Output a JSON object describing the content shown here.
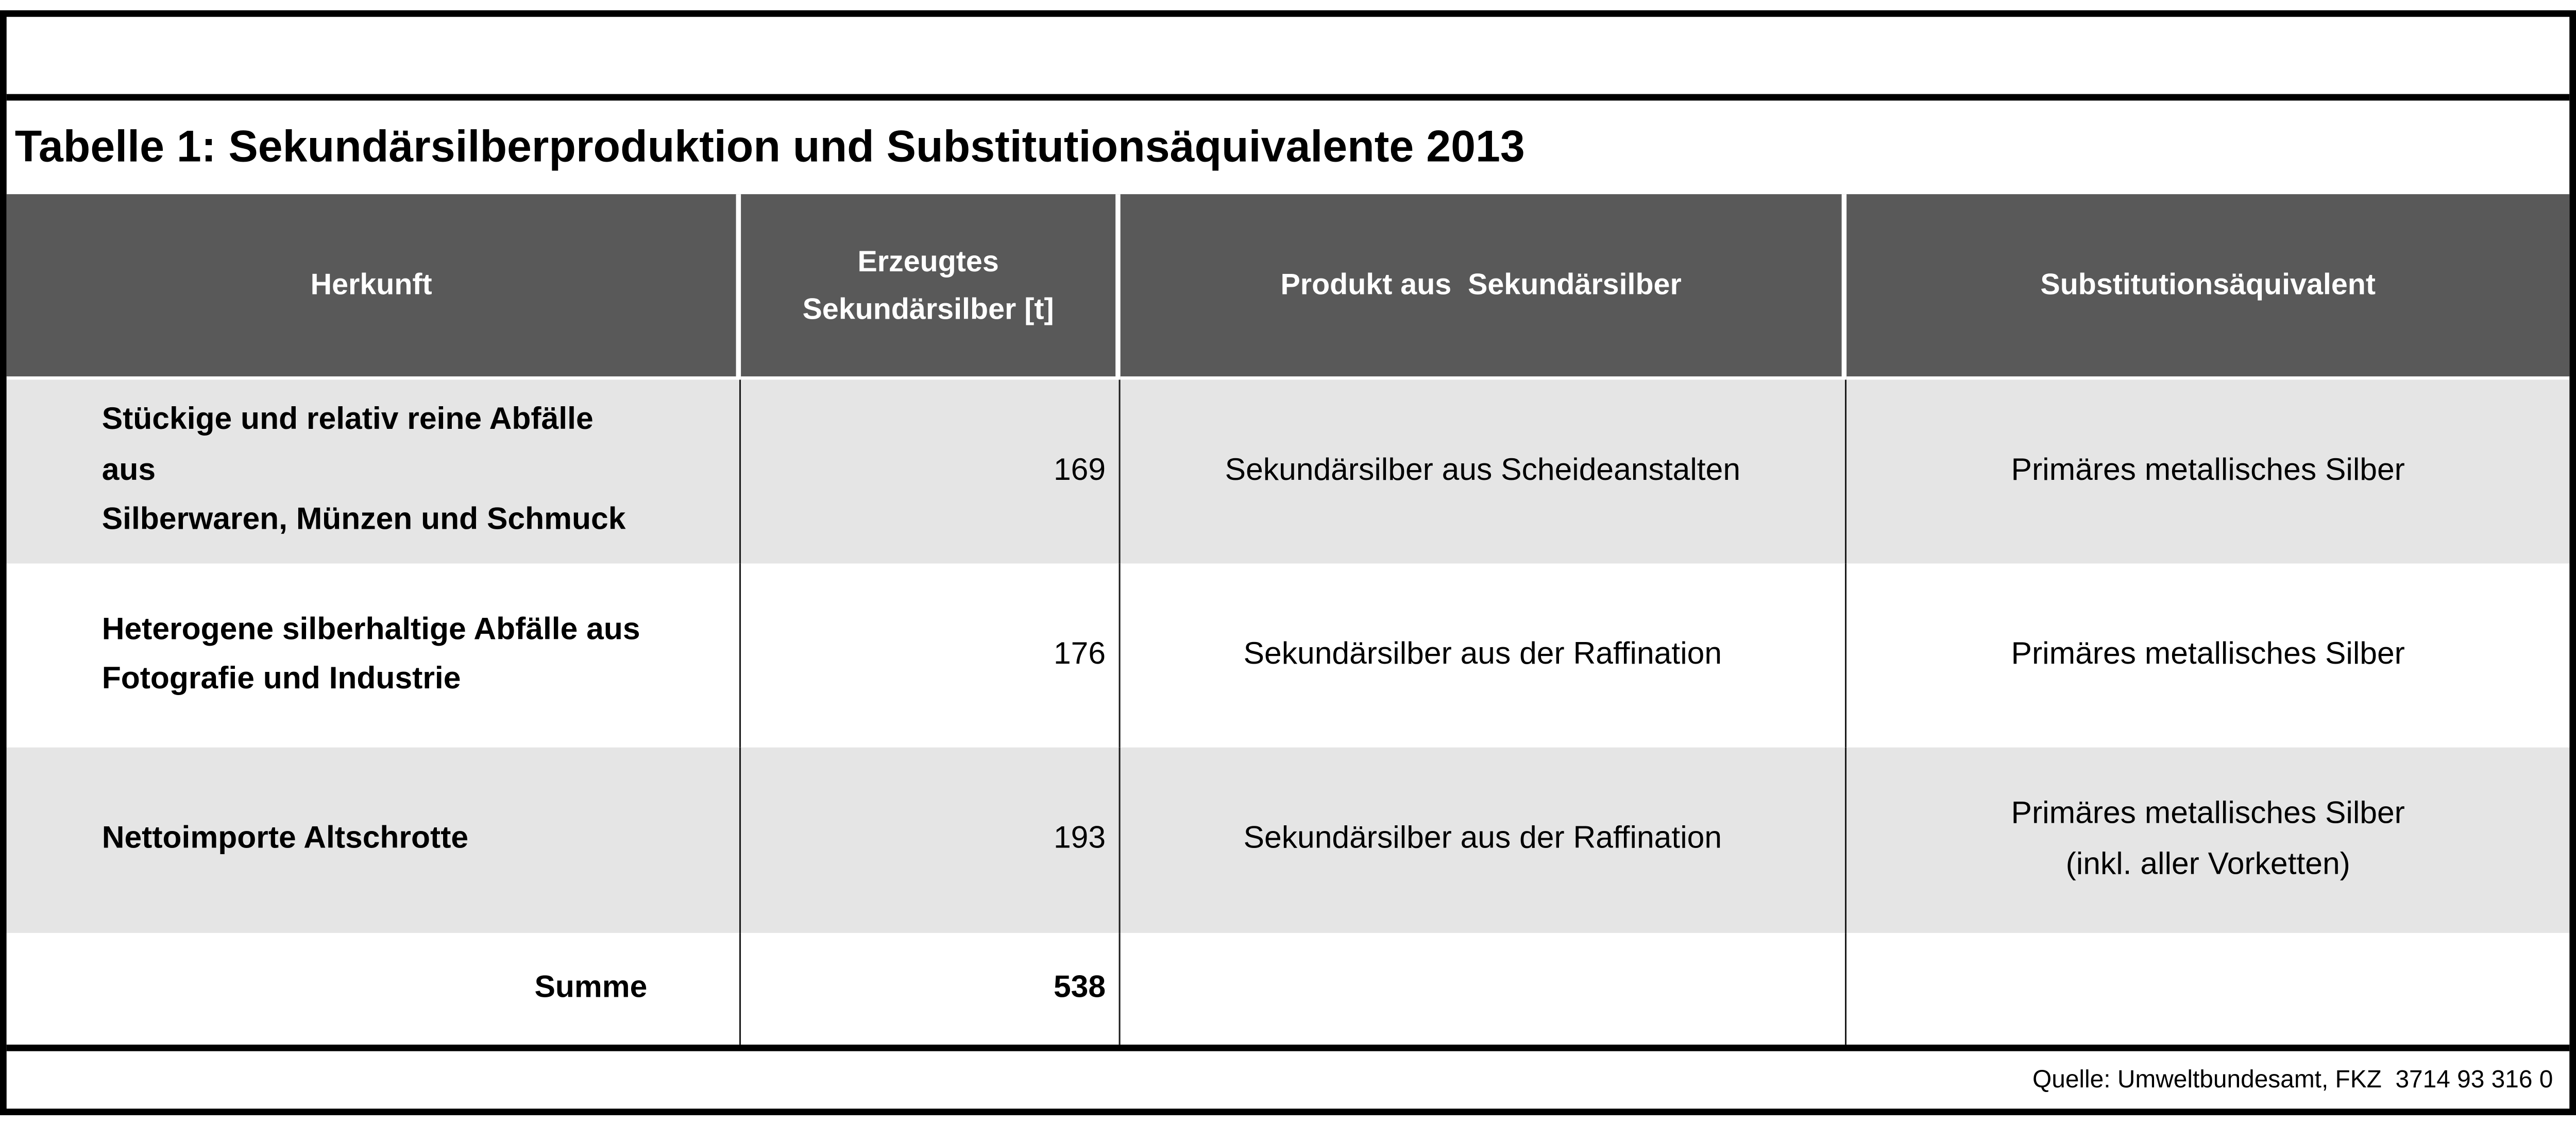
{
  "title": "Tabelle 1: Sekundärsilberproduktion und Substitutionsäquivalente 2013",
  "table": {
    "headers": {
      "herkunft": "Herkunft",
      "erzeugtes": "Erzeugtes\nSekundärsilber [t]",
      "produkt": "Produkt aus  Sekundärsilber",
      "substitution": "Substitutionsäquivalent"
    },
    "rows": [
      {
        "herkunft": "Stückige und relativ reine Abfälle aus\nSilberwaren, Münzen und Schmuck",
        "menge": "169",
        "produkt": "Sekundärsilber aus Scheideanstalten",
        "substitution": "Primäres metallisches Silber"
      },
      {
        "herkunft": "Heterogene silberhaltige Abfälle aus\nFotografie und Industrie",
        "menge": "176",
        "produkt": "Sekundärsilber aus der Raffination",
        "substitution": "Primäres metallisches Silber"
      },
      {
        "herkunft": "Nettoimporte Altschrotte",
        "menge": "193",
        "produkt": "Sekundärsilber aus der Raffination",
        "substitution": "Primäres metallisches Silber\n(inkl. aller Vorketten)"
      }
    ],
    "total": {
      "label": "Summe",
      "value": "538"
    }
  },
  "source": "Quelle: Umweltbundesamt, FKZ  3714 93 316 0",
  "colors": {
    "frame": "#000000",
    "header_bg": "#595959",
    "header_text": "#ffffff",
    "row_alt_bg": "#e5e5e5",
    "row_bg": "#ffffff",
    "divider": "#1a1a1a"
  }
}
